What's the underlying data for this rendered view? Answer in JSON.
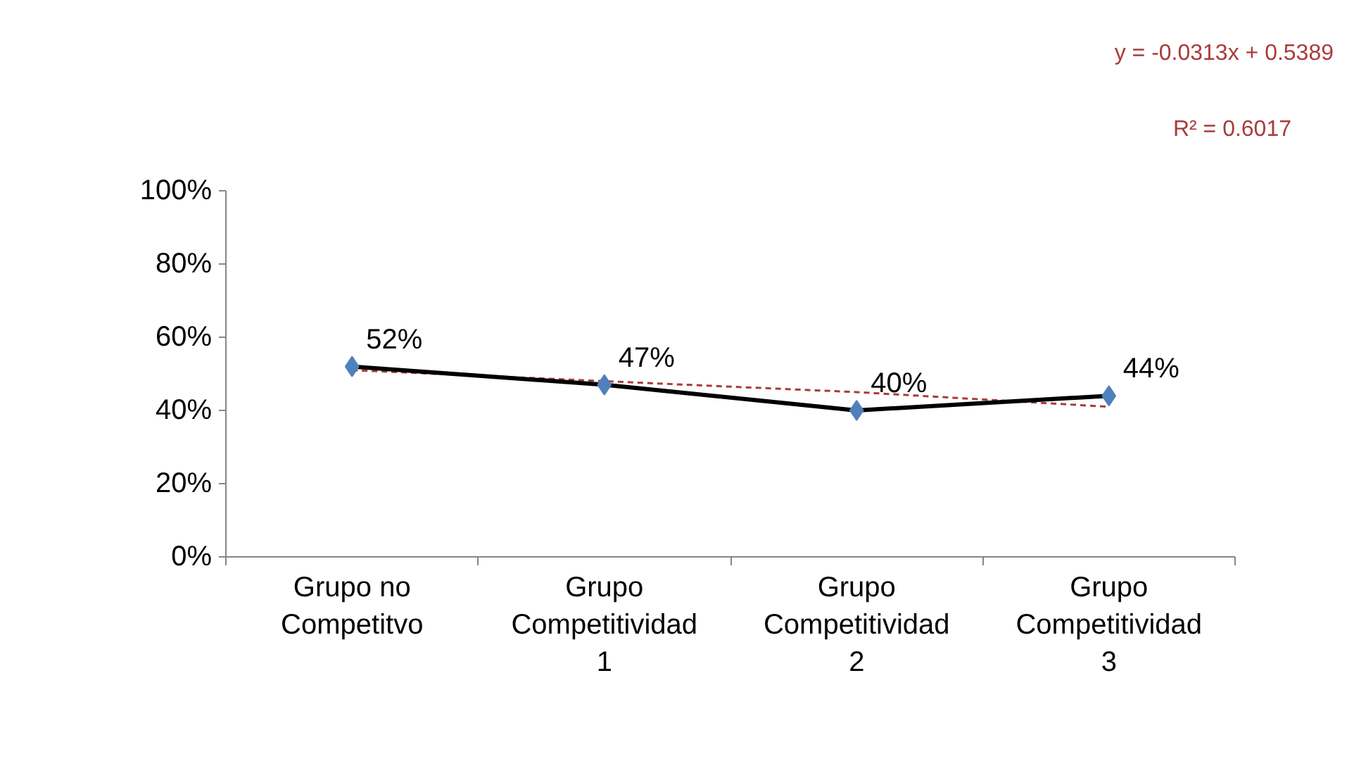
{
  "chart_data": {
    "type": "line",
    "categories": [
      "Grupo no Competitvo",
      "Grupo Competitividad 1",
      "Grupo Competitividad 2",
      "Grupo Competitividad 3"
    ],
    "ylim": [
      0,
      100
    ],
    "yticks": [
      {
        "value": 0,
        "label": "0%"
      },
      {
        "value": 20,
        "label": "20%"
      },
      {
        "value": 40,
        "label": "40%"
      },
      {
        "value": 60,
        "label": "60%"
      },
      {
        "value": 80,
        "label": "80%"
      },
      {
        "value": 100,
        "label": "100%"
      }
    ],
    "series": [
      {
        "type": "line",
        "color": "#000000",
        "values": [
          52,
          47,
          40,
          44
        ],
        "value_labels": [
          "52%",
          "47%",
          "40%",
          "44%"
        ],
        "marker": "diamond",
        "colors": [
          "#4f81bd",
          "#4f81bd",
          "#4f81bd",
          "#4f81bd"
        ],
        "line_style": "solid"
      },
      {
        "type": "line",
        "color": "#a83c3a",
        "values": [
          51,
          48,
          45,
          41
        ],
        "marker": "none",
        "line_style": "dashed"
      }
    ],
    "annotations": [
      "y = -0.0313x + 0.5389",
      "R² = 0.6017"
    ],
    "grid": false
  }
}
